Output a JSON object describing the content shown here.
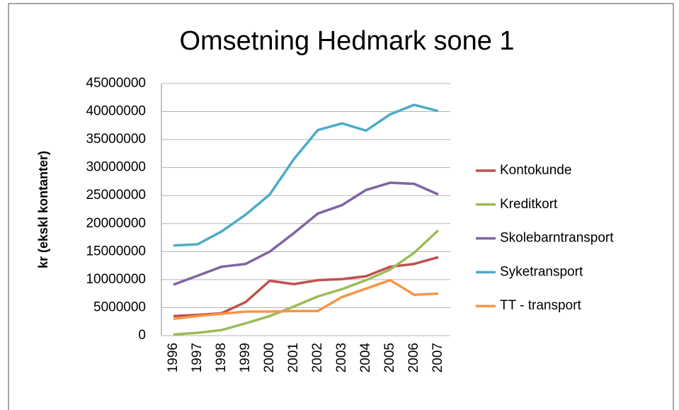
{
  "chart_data": {
    "type": "line",
    "title": "Omsetning Hedmark sone 1",
    "y_label": "kr (ekskl kontanter)",
    "categories": [
      "1996",
      "1997",
      "1998",
      "1999",
      "2000",
      "2001",
      "2002",
      "2003",
      "2004",
      "2005",
      "2006",
      "2007"
    ],
    "series": [
      {
        "name": "Kontokunde",
        "color": "#c0504d",
        "values": [
          3500000,
          3700000,
          4000000,
          6000000,
          9800000,
          9200000,
          9900000,
          10100000,
          10600000,
          12300000,
          12800000,
          14000000
        ]
      },
      {
        "name": "Kreditkort",
        "color": "#9bbb59",
        "values": [
          200000,
          500000,
          1000000,
          2200000,
          3500000,
          5200000,
          7000000,
          8300000,
          9900000,
          11800000,
          14800000,
          18800000
        ]
      },
      {
        "name": "Skolebarntransport",
        "color": "#8064a2",
        "values": [
          9100000,
          10700000,
          12300000,
          12800000,
          15000000,
          18300000,
          21800000,
          23300000,
          26000000,
          27300000,
          27100000,
          25200000
        ]
      },
      {
        "name": "Syketransport",
        "color": "#4bacc6",
        "values": [
          16100000,
          16300000,
          18600000,
          21600000,
          25200000,
          31500000,
          36700000,
          37900000,
          36600000,
          39500000,
          41200000,
          40100000
        ]
      },
      {
        "name": "TT - transport",
        "color": "#f79646",
        "values": [
          3000000,
          3500000,
          3900000,
          4300000,
          4300000,
          4400000,
          4400000,
          6900000,
          8400000,
          9900000,
          7300000,
          7500000
        ]
      }
    ],
    "ylim": [
      0,
      45000000
    ],
    "yticks": [
      0,
      5000000,
      10000000,
      15000000,
      20000000,
      25000000,
      30000000,
      35000000,
      40000000,
      45000000
    ],
    "grid": true,
    "legend": "right"
  }
}
